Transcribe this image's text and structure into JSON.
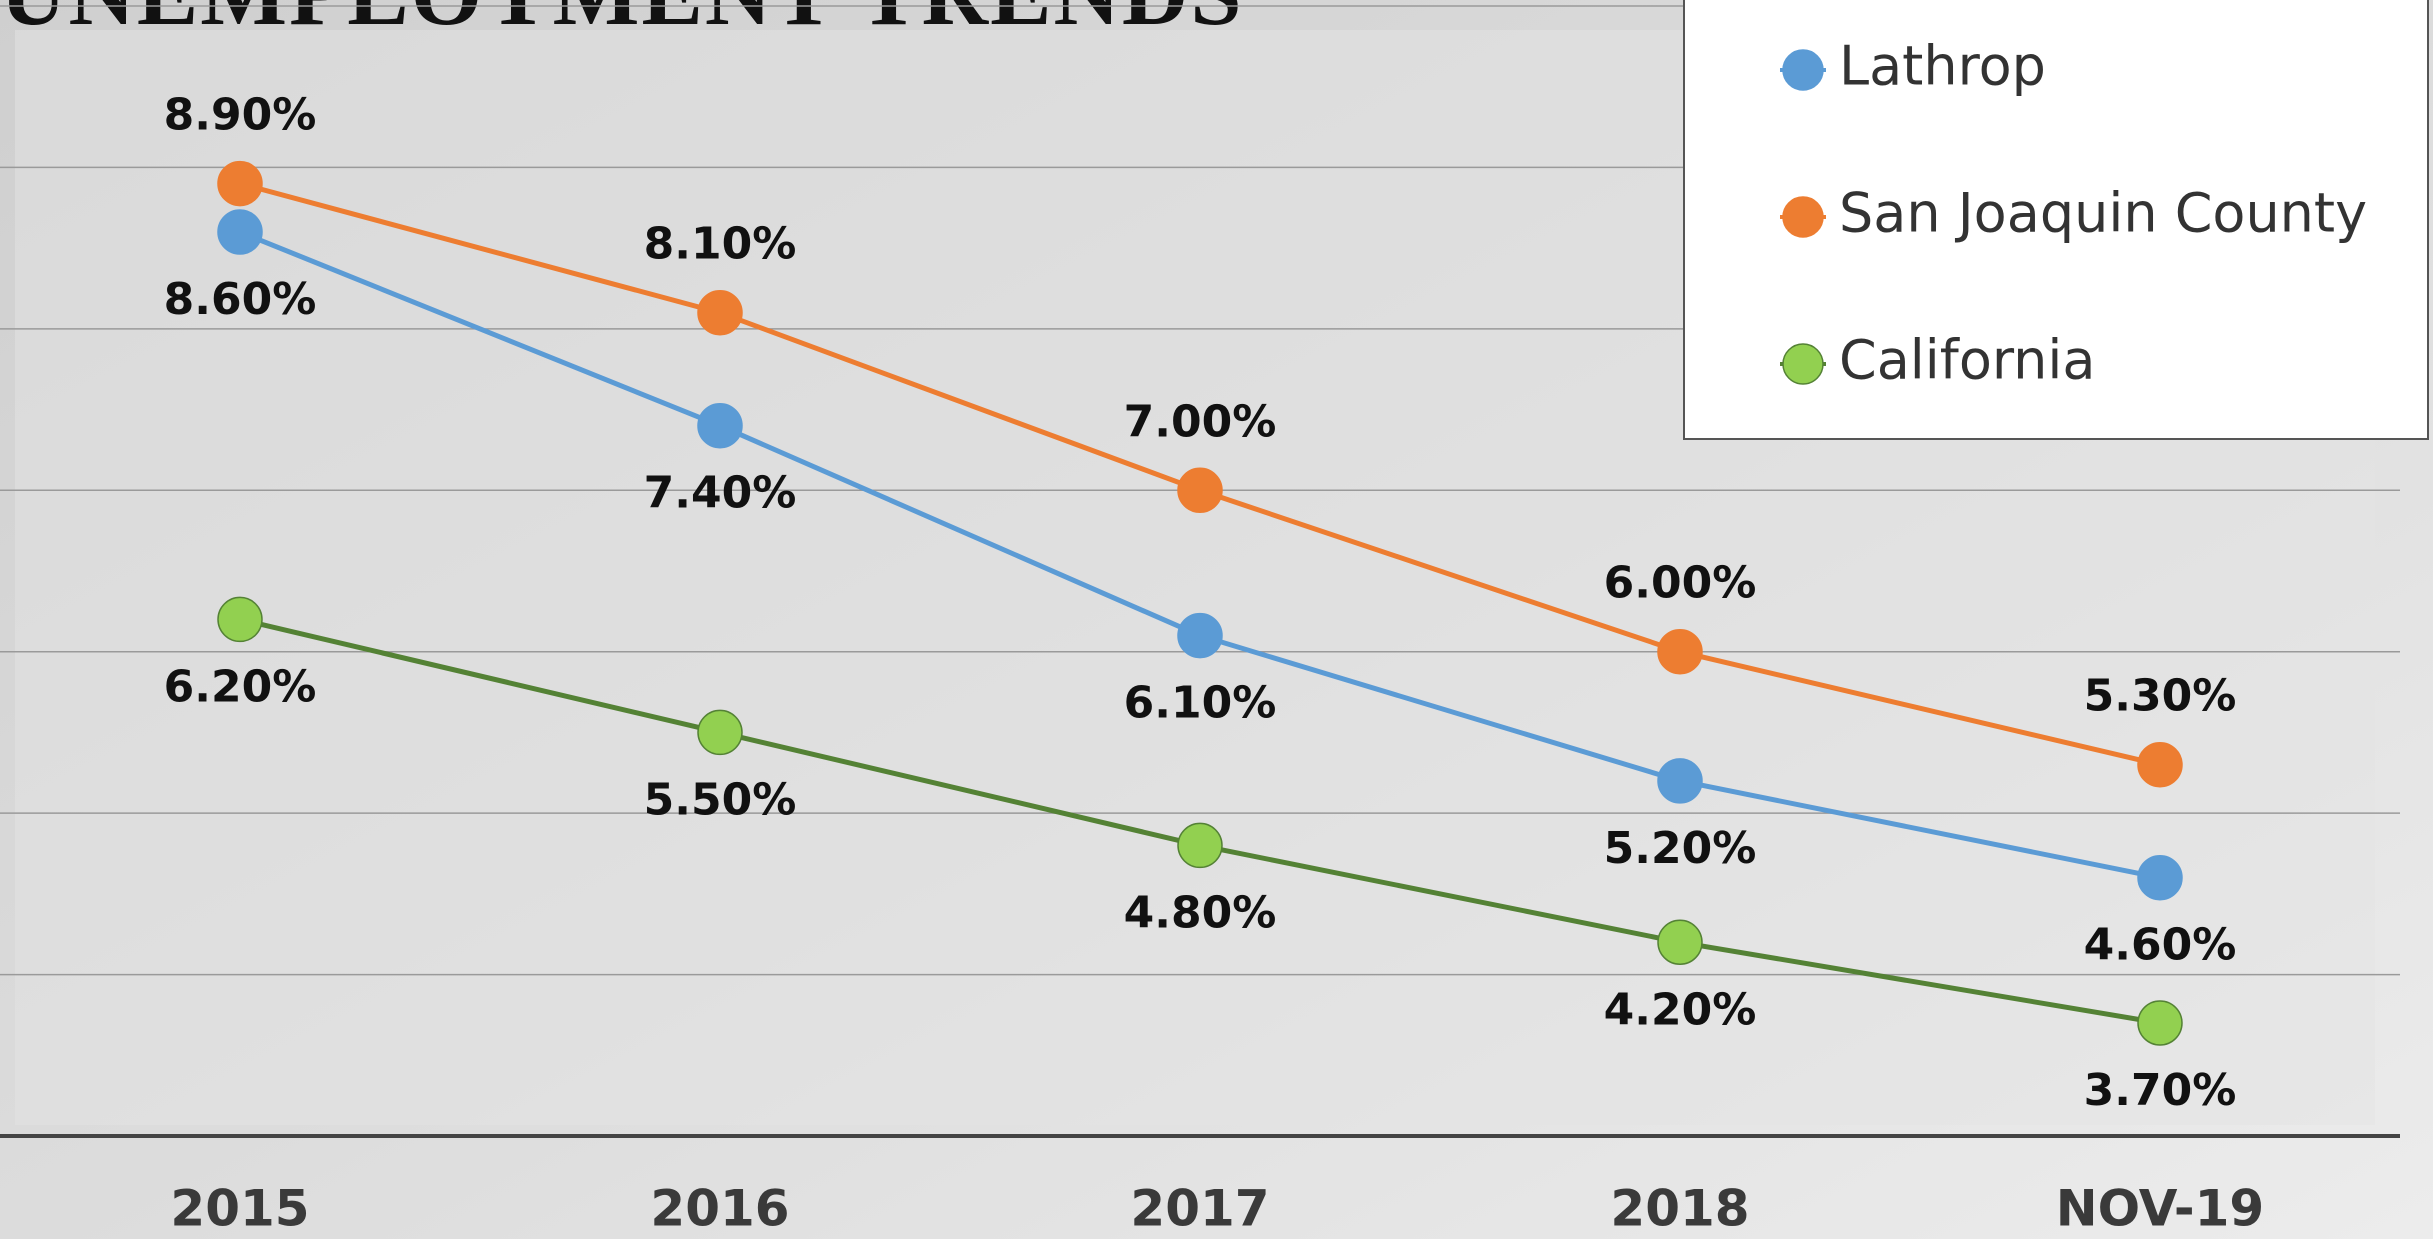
{
  "chart_data": {
    "type": "line",
    "title": "UNEMPLOYMENT TRENDS",
    "categories": [
      "2015",
      "2016",
      "2017",
      "2018",
      "NOV-19"
    ],
    "series": [
      {
        "name": "Lathrop",
        "color": "#5b9bd5",
        "marker_color": "#5b9bd5",
        "values": [
          8.6,
          7.4,
          6.1,
          5.2,
          4.6
        ],
        "value_labels": [
          "8.60%",
          "7.40%",
          "6.10%",
          "5.20%",
          "4.60%"
        ]
      },
      {
        "name": "San Joaquin County",
        "color": "#ed7d31",
        "marker_color": "#ed7d31",
        "values": [
          8.9,
          8.1,
          7.0,
          6.0,
          5.3
        ],
        "value_labels": [
          "8.90%",
          "8.10%",
          "7.00%",
          "6.00%",
          "5.30%"
        ]
      },
      {
        "name": "California",
        "color": "#548235",
        "marker_color": "#92d050",
        "values": [
          6.2,
          5.5,
          4.8,
          4.2,
          3.7
        ],
        "value_labels": [
          "6.20%",
          "5.50%",
          "4.80%",
          "4.20%",
          "3.70%"
        ]
      }
    ],
    "ylim": [
      3,
      10
    ],
    "yticks": [
      3,
      4,
      5,
      6,
      7,
      8,
      9,
      10
    ],
    "grid": true,
    "legend": "top-right"
  }
}
